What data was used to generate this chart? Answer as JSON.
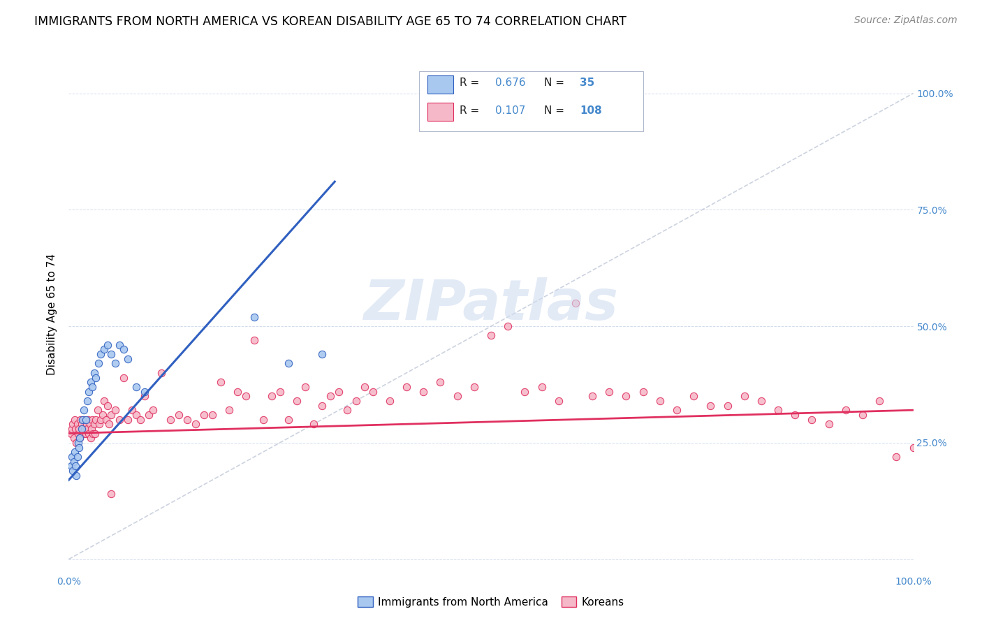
{
  "title": "IMMIGRANTS FROM NORTH AMERICA VS KOREAN DISABILITY AGE 65 TO 74 CORRELATION CHART",
  "source": "Source: ZipAtlas.com",
  "ylabel": "Disability Age 65 to 74",
  "xlim": [
    0,
    1.0
  ],
  "ylim": [
    -0.03,
    1.08
  ],
  "x_ticks": [
    0.0,
    0.1,
    0.2,
    0.3,
    0.4,
    0.5,
    0.6,
    0.7,
    0.8,
    0.9,
    1.0
  ],
  "x_tick_labels": [
    "0.0%",
    "",
    "",
    "",
    "",
    "",
    "",
    "",
    "",
    "",
    "100.0%"
  ],
  "y_tick_labels_right": [
    "100.0%",
    "75.0%",
    "50.0%",
    "25.0%"
  ],
  "y_ticks_right": [
    1.0,
    0.75,
    0.5,
    0.25
  ],
  "r_blue": 0.676,
  "n_blue": 35,
  "r_pink": 0.107,
  "n_pink": 108,
  "blue_color": "#a8c8f0",
  "pink_color": "#f5b8c8",
  "blue_line_color": "#3060c0",
  "pink_line_color": "#e03060",
  "diag_color": "#c0c8d8",
  "legend_label_blue": "Immigrants from North America",
  "legend_label_pink": "Koreans",
  "watermark": "ZIPatlas",
  "title_fontsize": 12.5,
  "source_fontsize": 10,
  "axis_label_fontsize": 11,
  "tick_fontsize": 10,
  "blue_scatter_x": [
    0.003,
    0.004,
    0.005,
    0.006,
    0.007,
    0.008,
    0.009,
    0.01,
    0.011,
    0.012,
    0.013,
    0.015,
    0.016,
    0.018,
    0.02,
    0.022,
    0.024,
    0.026,
    0.028,
    0.03,
    0.032,
    0.035,
    0.038,
    0.042,
    0.046,
    0.05,
    0.055,
    0.06,
    0.065,
    0.07,
    0.08,
    0.09,
    0.22,
    0.26,
    0.3
  ],
  "blue_scatter_y": [
    0.2,
    0.22,
    0.19,
    0.21,
    0.23,
    0.2,
    0.18,
    0.22,
    0.25,
    0.24,
    0.26,
    0.28,
    0.3,
    0.32,
    0.3,
    0.34,
    0.36,
    0.38,
    0.37,
    0.4,
    0.39,
    0.42,
    0.44,
    0.45,
    0.46,
    0.44,
    0.42,
    0.46,
    0.45,
    0.43,
    0.37,
    0.36,
    0.52,
    0.42,
    0.44
  ],
  "pink_scatter_x": [
    0.003,
    0.004,
    0.005,
    0.006,
    0.007,
    0.008,
    0.009,
    0.01,
    0.011,
    0.012,
    0.013,
    0.014,
    0.015,
    0.016,
    0.017,
    0.018,
    0.019,
    0.02,
    0.021,
    0.022,
    0.023,
    0.024,
    0.025,
    0.026,
    0.027,
    0.028,
    0.029,
    0.03,
    0.031,
    0.032,
    0.034,
    0.036,
    0.038,
    0.04,
    0.042,
    0.044,
    0.046,
    0.048,
    0.05,
    0.055,
    0.06,
    0.065,
    0.07,
    0.075,
    0.08,
    0.085,
    0.09,
    0.095,
    0.1,
    0.11,
    0.12,
    0.13,
    0.14,
    0.15,
    0.16,
    0.17,
    0.18,
    0.19,
    0.2,
    0.21,
    0.22,
    0.23,
    0.24,
    0.25,
    0.26,
    0.27,
    0.28,
    0.29,
    0.3,
    0.31,
    0.32,
    0.33,
    0.34,
    0.35,
    0.36,
    0.38,
    0.4,
    0.42,
    0.44,
    0.46,
    0.48,
    0.5,
    0.52,
    0.54,
    0.56,
    0.58,
    0.6,
    0.62,
    0.64,
    0.66,
    0.68,
    0.7,
    0.72,
    0.74,
    0.76,
    0.78,
    0.8,
    0.82,
    0.84,
    0.86,
    0.88,
    0.9,
    0.92,
    0.94,
    0.96,
    0.98,
    1.0,
    0.05
  ],
  "pink_scatter_y": [
    0.27,
    0.28,
    0.29,
    0.26,
    0.3,
    0.28,
    0.25,
    0.29,
    0.27,
    0.28,
    0.26,
    0.3,
    0.29,
    0.28,
    0.27,
    0.3,
    0.28,
    0.27,
    0.29,
    0.28,
    0.3,
    0.27,
    0.29,
    0.26,
    0.28,
    0.3,
    0.27,
    0.29,
    0.27,
    0.3,
    0.32,
    0.29,
    0.3,
    0.31,
    0.34,
    0.3,
    0.33,
    0.29,
    0.31,
    0.32,
    0.3,
    0.39,
    0.3,
    0.32,
    0.31,
    0.3,
    0.35,
    0.31,
    0.32,
    0.4,
    0.3,
    0.31,
    0.3,
    0.29,
    0.31,
    0.31,
    0.38,
    0.32,
    0.36,
    0.35,
    0.47,
    0.3,
    0.35,
    0.36,
    0.3,
    0.34,
    0.37,
    0.29,
    0.33,
    0.35,
    0.36,
    0.32,
    0.34,
    0.37,
    0.36,
    0.34,
    0.37,
    0.36,
    0.38,
    0.35,
    0.37,
    0.48,
    0.5,
    0.36,
    0.37,
    0.34,
    0.55,
    0.35,
    0.36,
    0.35,
    0.36,
    0.34,
    0.32,
    0.35,
    0.33,
    0.33,
    0.35,
    0.34,
    0.32,
    0.31,
    0.3,
    0.29,
    0.32,
    0.31,
    0.34,
    0.22,
    0.24,
    0.14
  ]
}
